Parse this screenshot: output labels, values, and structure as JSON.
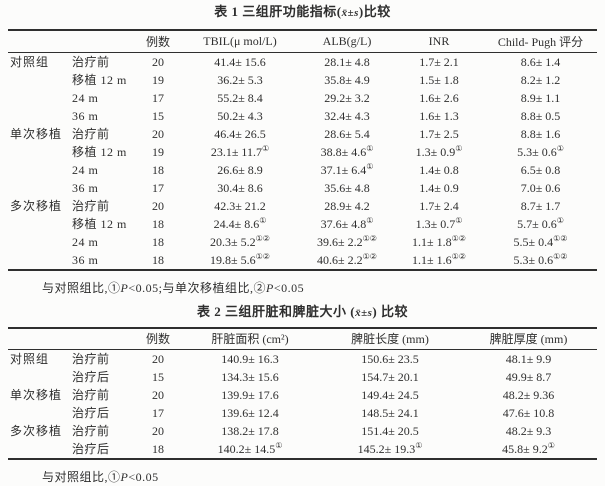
{
  "table1": {
    "caption_label": "表 1",
    "caption_pre": " 三组肝功能指标(",
    "caption_stat": "x̄±s",
    "caption_post": ")比较",
    "headers": [
      "例数",
      "TBIL(μ mol/L)",
      "ALB(g/L)",
      "INR",
      "Child- Pugh 评分"
    ],
    "rows": [
      {
        "group": "对照组",
        "time": "治疗前",
        "n": "20",
        "c1": "41.4± 15.6",
        "c1s": "",
        "c2": "28.1± 4.8",
        "c2s": "",
        "c3": "1.7± 2.1",
        "c3s": "",
        "c4": "8.6± 1.4",
        "c4s": ""
      },
      {
        "group": "",
        "time": "移植 12 m",
        "n": "19",
        "c1": "36.2± 5.3",
        "c1s": "",
        "c2": "35.8± 4.9",
        "c2s": "",
        "c3": "1.5± 1.8",
        "c3s": "",
        "c4": "8.2± 1.2",
        "c4s": ""
      },
      {
        "group": "",
        "time": "24 m",
        "n": "17",
        "c1": "55.2± 8.4",
        "c1s": "",
        "c2": "29.2± 3.2",
        "c2s": "",
        "c3": "1.6± 2.6",
        "c3s": "",
        "c4": "8.9± 1.1",
        "c4s": ""
      },
      {
        "group": "",
        "time": "36 m",
        "n": "15",
        "c1": "50.2± 4.3",
        "c1s": "",
        "c2": "32.4± 4.3",
        "c2s": "",
        "c3": "1.6± 1.3",
        "c3s": "",
        "c4": "8.8± 0.5",
        "c4s": ""
      },
      {
        "group": "单次移植",
        "time": "治疗前",
        "n": "20",
        "c1": "46.4± 26.5",
        "c1s": "",
        "c2": "28.6± 5.4",
        "c2s": "",
        "c3": "1.7± 2.5",
        "c3s": "",
        "c4": "8.8± 1.6",
        "c4s": ""
      },
      {
        "group": "",
        "time": "移植 12 m",
        "n": "19",
        "c1": "23.1± 11.7",
        "c1s": "①",
        "c2": "38.8± 4.6",
        "c2s": "①",
        "c3": "1.3± 0.9",
        "c3s": "①",
        "c4": "5.3± 0.6",
        "c4s": "①"
      },
      {
        "group": "",
        "time": "24 m",
        "n": "18",
        "c1": "26.6± 8.9",
        "c1s": "",
        "c2": "37.1± 6.4",
        "c2s": "①",
        "c3": "1.4± 0.8",
        "c3s": "",
        "c4": "6.5± 0.8",
        "c4s": ""
      },
      {
        "group": "",
        "time": "36 m",
        "n": "17",
        "c1": "30.4± 8.6",
        "c1s": "",
        "c2": "35.6± 4.8",
        "c2s": "",
        "c3": "1.4± 0.9",
        "c3s": "",
        "c4": "7.0± 0.6",
        "c4s": ""
      },
      {
        "group": "多次移植",
        "time": "治疗前",
        "n": "20",
        "c1": "42.3± 21.2",
        "c1s": "",
        "c2": "28.9± 4.2",
        "c2s": "",
        "c3": "1.7± 2.4",
        "c3s": "",
        "c4": "8.7± 1.7",
        "c4s": ""
      },
      {
        "group": "",
        "time": "移植 12 m",
        "n": "18",
        "c1": "24.4± 8.6",
        "c1s": "①",
        "c2": "37.6± 4.8",
        "c2s": "①",
        "c3": "1.3± 0.7",
        "c3s": "①",
        "c4": "5.7± 0.6",
        "c4s": "①"
      },
      {
        "group": "",
        "time": "24 m",
        "n": "18",
        "c1": "20.3± 5.2",
        "c1s": "①②",
        "c2": "39.6± 2.2",
        "c2s": "①②",
        "c3": "1.1± 1.8",
        "c3s": "①②",
        "c4": "5.5± 0.4",
        "c4s": "①②"
      },
      {
        "group": "",
        "time": "36 m",
        "n": "18",
        "c1": "19.8± 5.6",
        "c1s": "①②",
        "c2": "40.6± 2.2",
        "c2s": "①②",
        "c3": "1.1± 1.6",
        "c3s": "①②",
        "c4": "5.3± 0.6",
        "c4s": "①②"
      }
    ],
    "footnote": {
      "seg1": "与对照组比,①",
      "p1": "P",
      "seg2": "<0.05;与单次移植组比,②",
      "p2": "P",
      "seg3": "<0.05"
    }
  },
  "table2": {
    "caption_label": "表 2",
    "caption_pre": " 三组肝脏和脾脏大小 (",
    "caption_stat": "x̄±s",
    "caption_post": ") 比较",
    "headers": [
      "例数",
      "肝脏面积 (cm²)",
      "脾脏长度 (mm)",
      "脾脏厚度 (mm)"
    ],
    "rows": [
      {
        "group": "对照组",
        "time": "治疗前",
        "n": "20",
        "c1": "140.9± 16.3",
        "c1s": "",
        "c2": "150.6± 23.5",
        "c2s": "",
        "c3": "48.1± 9.9",
        "c3s": ""
      },
      {
        "group": "",
        "time": "治疗后",
        "n": "15",
        "c1": "134.3± 15.6",
        "c1s": "",
        "c2": "154.7± 20.1",
        "c2s": "",
        "c3": "49.9± 8.7",
        "c3s": ""
      },
      {
        "group": "单次移植",
        "time": "治疗前",
        "n": "20",
        "c1": "139.9± 17.6",
        "c1s": "",
        "c2": "149.4± 24.5",
        "c2s": "",
        "c3": "48.2± 9.36",
        "c3s": ""
      },
      {
        "group": "",
        "time": "治疗后",
        "n": "17",
        "c1": "139.6± 12.4",
        "c1s": "",
        "c2": "148.5± 24.1",
        "c2s": "",
        "c3": "47.6± 10.8",
        "c3s": ""
      },
      {
        "group": "多次移植",
        "time": "治疗前",
        "n": "20",
        "c1": "138.2± 17.8",
        "c1s": "",
        "c2": "151.4± 20.5",
        "c2s": "",
        "c3": "48.2± 9.3",
        "c3s": ""
      },
      {
        "group": "",
        "time": "治疗后",
        "n": "18",
        "c1": "140.2± 14.5",
        "c1s": "①",
        "c2": "145.2± 19.3",
        "c2s": "①",
        "c3": "45.8± 9.2",
        "c3s": "①"
      }
    ],
    "footnote": {
      "seg1": "与对照组比,①",
      "p1": "P",
      "seg2": "<0.05",
      "p2": "",
      "seg3": ""
    }
  }
}
